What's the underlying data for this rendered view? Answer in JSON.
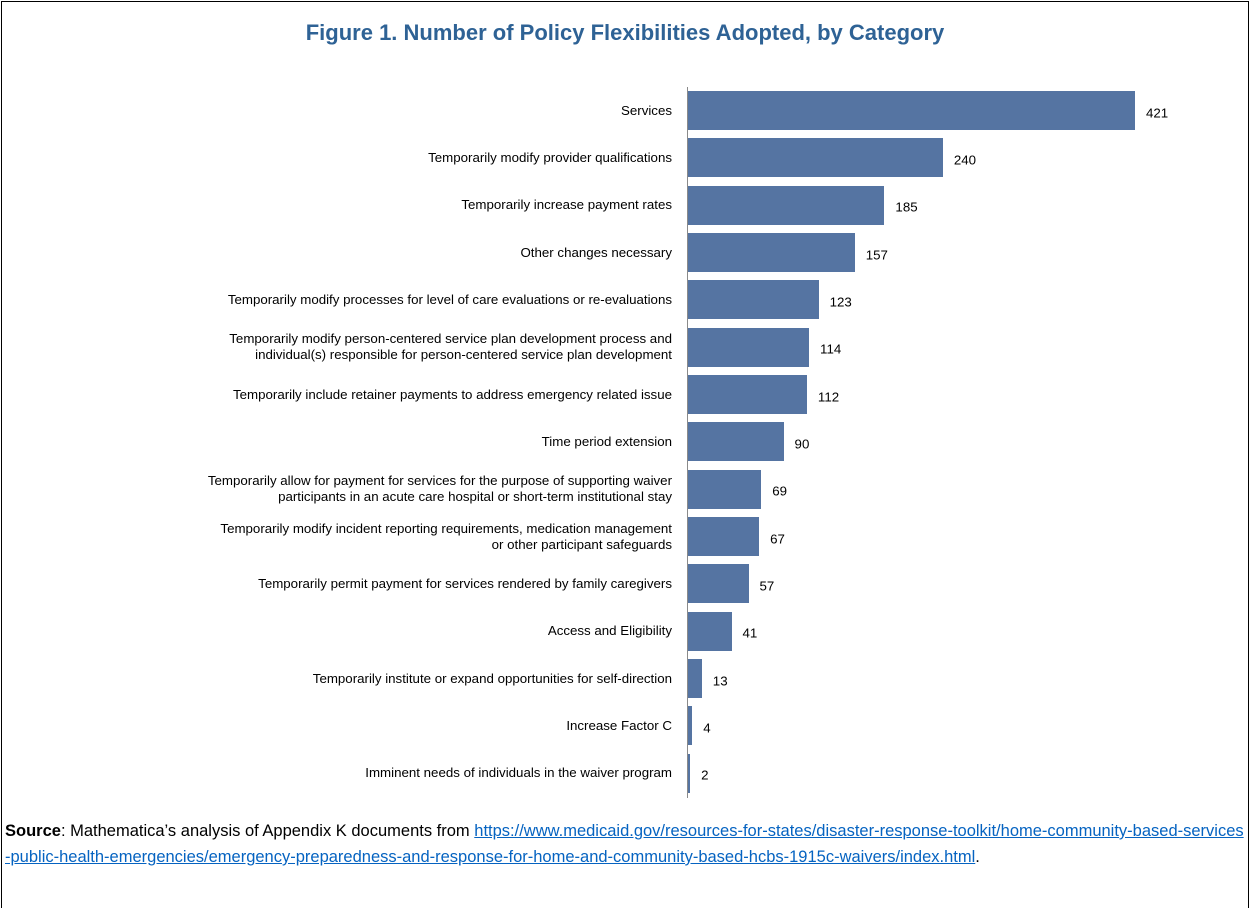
{
  "chart_data": {
    "type": "bar",
    "orientation": "horizontal",
    "title": "Figure 1. Number of Policy Flexibilities Adopted, by Category",
    "categories": [
      "Services",
      "Temporarily modify provider qualifications",
      "Temporarily increase payment rates",
      "Other changes necessary",
      "Temporarily modify processes for level of care evaluations or re-evaluations",
      "Temporarily modify person-centered service plan development process and\nindividual(s) responsible for person-centered service plan development",
      "Temporarily include retainer payments to address emergency related issue",
      "Time period extension",
      "Temporarily allow for payment for services for the purpose of supporting waiver\nparticipants in an acute care hospital or short-term institutional stay",
      "Temporarily modify incident reporting requirements, medication management\nor other participant safeguards",
      "Temporarily permit payment for services rendered by family caregivers",
      "Access and Eligibility",
      "Temporarily institute or expand opportunities for self-direction",
      "Increase Factor C",
      "Imminent needs of individuals in the waiver program"
    ],
    "values": [
      421,
      240,
      185,
      157,
      123,
      114,
      112,
      90,
      69,
      67,
      57,
      41,
      13,
      4,
      2
    ],
    "color": "#5574a2"
  },
  "source": {
    "label": "Source",
    "text": ":  Mathematica’s analysis of Appendix K documents from ",
    "url": "https://www.medicaid.gov/resources-for-states/disaster-response-toolkit/home-community-based-services-public-health-emergencies/emergency-preparedness-and-response-for-home-and-community-based-hcbs-1915c-waivers/index.html",
    "end": "."
  }
}
